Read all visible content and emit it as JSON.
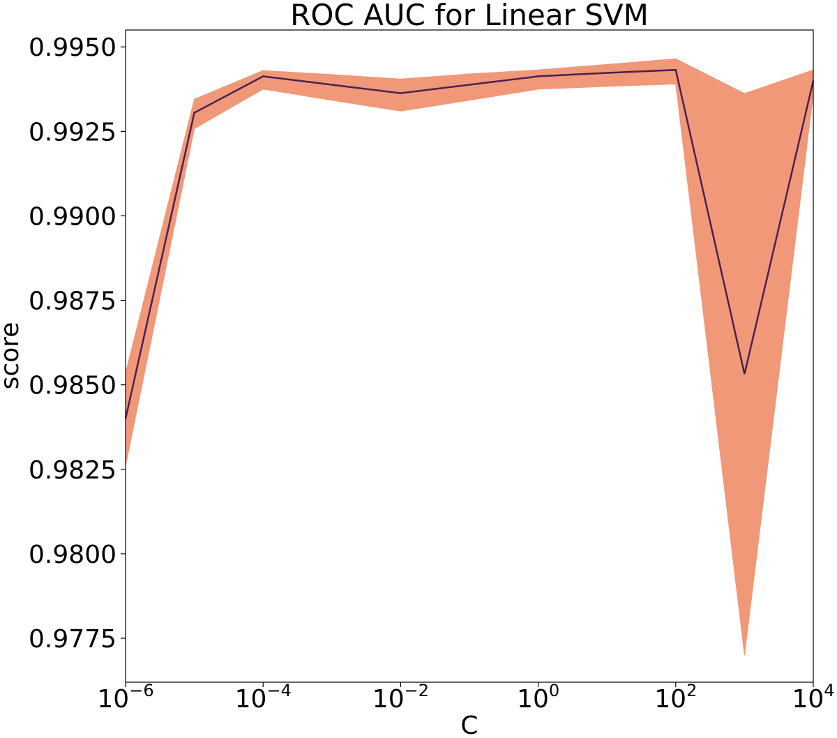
{
  "chart_data": {
    "type": "line",
    "title": "ROC AUC for Linear SVM",
    "xlabel": "C",
    "ylabel": "score",
    "x_scale": "log",
    "xlim": [
      1e-06,
      10000.0
    ],
    "ylim": [
      0.9762,
      0.9955
    ],
    "x_ticks": [
      {
        "value": 1e-06,
        "base": "10",
        "exp": "−6"
      },
      {
        "value": 0.0001,
        "base": "10",
        "exp": "−4"
      },
      {
        "value": 0.01,
        "base": "10",
        "exp": "−2"
      },
      {
        "value": 1.0,
        "base": "10",
        "exp": "0"
      },
      {
        "value": 100.0,
        "base": "10",
        "exp": "2"
      },
      {
        "value": 10000.0,
        "base": "10",
        "exp": "4"
      }
    ],
    "y_ticks": [
      {
        "value": 0.9775,
        "label": "0.9775"
      },
      {
        "value": 0.98,
        "label": "0.9800"
      },
      {
        "value": 0.9825,
        "label": "0.9825"
      },
      {
        "value": 0.985,
        "label": "0.9850"
      },
      {
        "value": 0.9875,
        "label": "0.9875"
      },
      {
        "value": 0.99,
        "label": "0.9900"
      },
      {
        "value": 0.9925,
        "label": "0.9925"
      },
      {
        "value": 0.995,
        "label": "0.9950"
      }
    ],
    "grid": false,
    "series": [
      {
        "x": [
          1e-06,
          1e-05,
          0.0001,
          0.001,
          0.01,
          0.1,
          1.0,
          10.0,
          100.0,
          1000.0,
          10000.0
        ],
        "mean": [
          0.984,
          0.99305,
          0.99413,
          0.99388,
          0.99363,
          0.99388,
          0.99413,
          0.99423,
          0.99432,
          0.98532,
          0.994
        ],
        "upper": [
          0.98535,
          0.99345,
          0.9943,
          0.99418,
          0.99405,
          0.9942,
          0.99432,
          0.99448,
          0.99465,
          0.99362,
          0.99432
        ],
        "lower": [
          0.9826,
          0.99258,
          0.99375,
          0.99342,
          0.9931,
          0.99342,
          0.99375,
          0.99383,
          0.9939,
          0.977,
          0.99362
        ],
        "line_color": "#4a2050",
        "band_color": "#f09878"
      }
    ]
  }
}
